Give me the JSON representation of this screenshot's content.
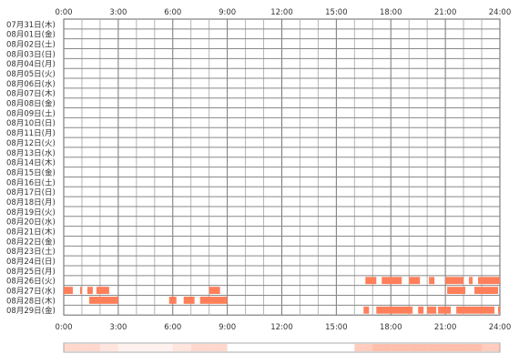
{
  "time_axis": {
    "top_labels": [
      "0:00",
      "3:00",
      "6:00",
      "9:00",
      "12:00",
      "15:00",
      "18:00",
      "21:00",
      "24:00"
    ],
    "bottom_labels": [
      "0:00",
      "3:00",
      "6:00",
      "9:00",
      "12:00",
      "15:00",
      "18:00",
      "21:00",
      "24:00"
    ]
  },
  "chart_data": {
    "type": "heatmap",
    "title": "",
    "x_unit": "hour of day",
    "xlim": [
      0,
      24
    ],
    "rows": [
      {
        "date": "07月31日(木)",
        "segments": []
      },
      {
        "date": "08月01日(金)",
        "segments": []
      },
      {
        "date": "08月02日(土)",
        "segments": []
      },
      {
        "date": "08月03日(日)",
        "segments": []
      },
      {
        "date": "08月04日(月)",
        "segments": []
      },
      {
        "date": "08月05日(火)",
        "segments": []
      },
      {
        "date": "08月06日(水)",
        "segments": []
      },
      {
        "date": "08月07日(木)",
        "segments": []
      },
      {
        "date": "08月08日(金)",
        "segments": []
      },
      {
        "date": "08月09日(土)",
        "segments": []
      },
      {
        "date": "08月10日(日)",
        "segments": []
      },
      {
        "date": "08月11日(月)",
        "segments": []
      },
      {
        "date": "08月12日(火)",
        "segments": []
      },
      {
        "date": "08月13日(水)",
        "segments": []
      },
      {
        "date": "08月14日(木)",
        "segments": []
      },
      {
        "date": "08月15日(金)",
        "segments": []
      },
      {
        "date": "08月16日(土)",
        "segments": []
      },
      {
        "date": "08月17日(日)",
        "segments": []
      },
      {
        "date": "08月18日(月)",
        "segments": []
      },
      {
        "date": "08月19日(火)",
        "segments": []
      },
      {
        "date": "08月20日(水)",
        "segments": []
      },
      {
        "date": "08月21日(木)",
        "segments": []
      },
      {
        "date": "08月22日(金)",
        "segments": []
      },
      {
        "date": "08月23日(土)",
        "segments": []
      },
      {
        "date": "08月24日(日)",
        "segments": []
      },
      {
        "date": "08月25日(月)",
        "segments": []
      },
      {
        "date": "08月26日(火)",
        "segments": [
          [
            16.6,
            17.2
          ],
          [
            17.5,
            18.6
          ],
          [
            19.0,
            19.6
          ],
          [
            20.1,
            20.4
          ],
          [
            21.0,
            22.0
          ],
          [
            22.3,
            22.5
          ],
          [
            22.8,
            24.0
          ]
        ]
      },
      {
        "date": "08月27日(水)",
        "segments": [
          [
            0.0,
            0.5
          ],
          [
            0.9,
            1.0
          ],
          [
            1.3,
            1.6
          ],
          [
            1.8,
            2.5
          ],
          [
            8.0,
            8.6
          ],
          [
            21.1,
            22.1
          ],
          [
            22.6,
            23.9
          ]
        ]
      },
      {
        "date": "08月28日(木)",
        "segments": [
          [
            1.4,
            3.0
          ],
          [
            5.8,
            6.2
          ],
          [
            6.6,
            7.2
          ],
          [
            7.5,
            9.0
          ]
        ]
      },
      {
        "date": "08月29日(金)",
        "segments": [
          [
            16.5,
            16.8
          ],
          [
            17.2,
            19.2
          ],
          [
            19.5,
            19.8
          ],
          [
            20.0,
            20.5
          ],
          [
            20.6,
            21.3
          ],
          [
            21.6,
            23.7
          ],
          [
            23.9,
            24.0
          ]
        ]
      }
    ],
    "bar_color": "#ff7f5a",
    "grid_color": "#999999",
    "overview_bar": {
      "hour_counts": [
        0.3,
        0.3,
        0.2,
        0.1,
        0.1,
        0.1,
        0.2,
        0.3,
        0.3,
        0.0,
        0.0,
        0.0,
        0.0,
        0.0,
        0.0,
        0.0,
        0.4,
        0.5,
        0.5,
        0.5,
        0.5,
        0.5,
        0.5,
        0.4
      ],
      "color": "#ff7f5a"
    }
  }
}
